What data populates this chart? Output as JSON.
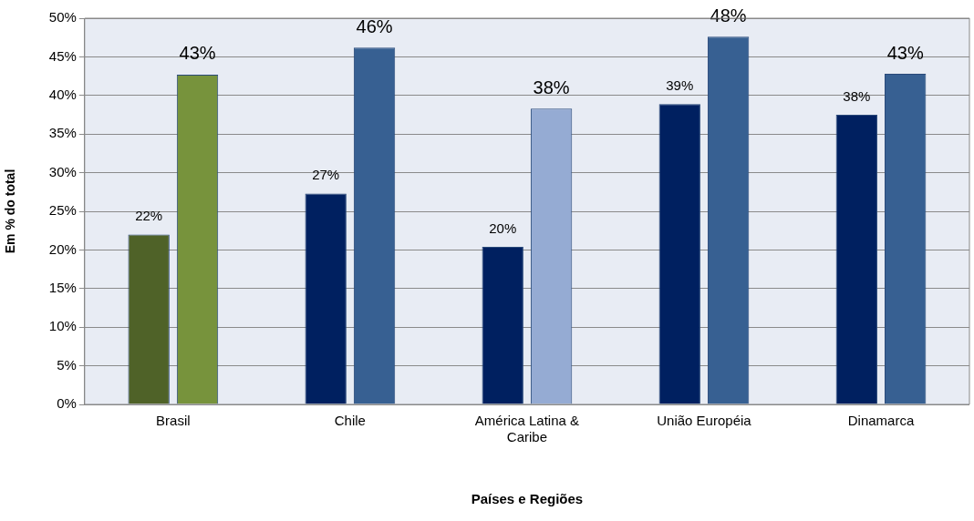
{
  "chart_data": {
    "type": "bar",
    "xlabel": "Países e Regiões",
    "ylabel": "Em % do total",
    "categories": [
      "Brasil",
      "Chile",
      "América Latina & Caribe",
      "União Européia",
      "Dinamarca"
    ],
    "series": [
      {
        "colors": [
          "#4f6228",
          "#002060",
          "#002060",
          "#002060",
          "#002060"
        ],
        "values": [
          22,
          27.3,
          20.4,
          38.9,
          37.5
        ],
        "value_labels": [
          "22%",
          "27%",
          "20%",
          "39%",
          "38%"
        ]
      },
      {
        "colors": [
          "#77933c",
          "#376092",
          "#95abd3",
          "#376092",
          "#376092"
        ],
        "values": [
          42.7,
          46.2,
          38.3,
          47.6,
          42.8
        ],
        "value_labels": [
          "43%",
          "46%",
          "38%",
          "48%",
          "43%"
        ]
      }
    ],
    "ylim": [
      0,
      50
    ],
    "yticks": [
      {
        "value": 0,
        "label": "0%"
      },
      {
        "value": 5,
        "label": "5%"
      },
      {
        "value": 10,
        "label": "10%"
      },
      {
        "value": 15,
        "label": "15%"
      },
      {
        "value": 20,
        "label": "20%"
      },
      {
        "value": 25,
        "label": "25%"
      },
      {
        "value": 30,
        "label": "30%"
      },
      {
        "value": 35,
        "label": "35%"
      },
      {
        "value": 40,
        "label": "40%"
      },
      {
        "value": 45,
        "label": "45%"
      },
      {
        "value": 50,
        "label": "50%"
      }
    ],
    "grid": "y",
    "legend": false
  }
}
